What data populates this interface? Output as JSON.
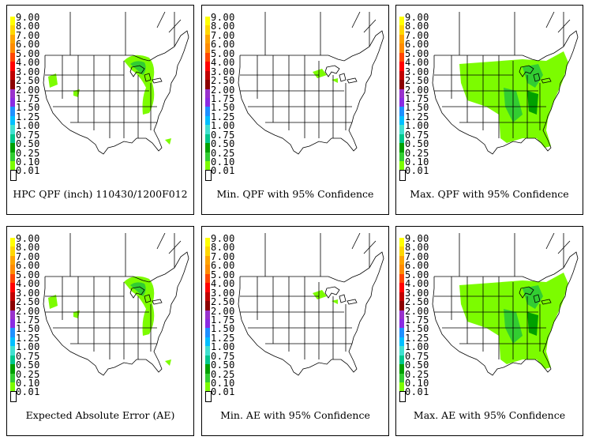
{
  "legend": {
    "labels": [
      "9.00",
      "8.00",
      "7.00",
      "6.00",
      "5.00",
      "4.00",
      "3.00",
      "2.50",
      "2.00",
      "1.75",
      "1.50",
      "1.25",
      "1.00",
      "0.75",
      "0.50",
      "0.25",
      "0.10",
      "0.01"
    ],
    "colors": [
      "#ffff00",
      "#ffd700",
      "#ffa500",
      "#ff8c00",
      "#ff4500",
      "#ff0000",
      "#c00000",
      "#8b0000",
      "#9932cc",
      "#8a2be2",
      "#1e90ff",
      "#00bfff",
      "#40e0d0",
      "#00c78c",
      "#00a000",
      "#32cd32",
      "#7cfc00",
      "#ffffff"
    ]
  },
  "panels": [
    {
      "caption": "HPC QPF (inch) 110430/1200F012",
      "coverage": "sparse"
    },
    {
      "caption": "Min. QPF with 95% Confidence",
      "coverage": "minimal"
    },
    {
      "caption": "Max. QPF with 95% Confidence",
      "coverage": "wide"
    },
    {
      "caption": "Expected Absolute Error (AE)",
      "coverage": "sparse"
    },
    {
      "caption": "Min. AE with 95% Confidence",
      "coverage": "minimal"
    },
    {
      "caption": "Max. AE with 95% Confidence",
      "coverage": "wide"
    }
  ],
  "colors": {
    "light_green": "#7cfc00",
    "mid_green": "#32cd32",
    "dark_green": "#00a000",
    "outline": "#000000"
  }
}
